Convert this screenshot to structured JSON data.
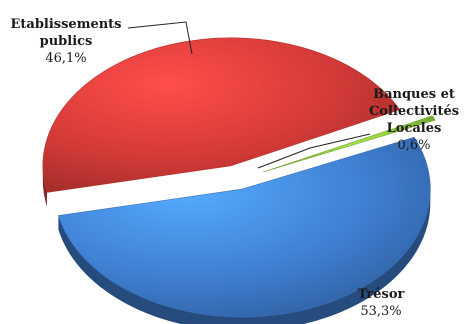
{
  "chart_data": {
    "type": "pie",
    "style": "3d-exploded",
    "slices": [
      {
        "name_lines": [
          "Etablissements",
          "publics"
        ],
        "value": 46.1,
        "value_label": "46,1%",
        "color": "#d23a37"
      },
      {
        "name_lines": [
          "Banques et",
          "Collectivités",
          "Locales"
        ],
        "value": 0.6,
        "value_label": "0,6%",
        "color": "#8cc63f"
      },
      {
        "name_lines": [
          "Trésor"
        ],
        "value": 53.3,
        "value_label": "53,3%",
        "color": "#3f7fd2"
      }
    ]
  }
}
